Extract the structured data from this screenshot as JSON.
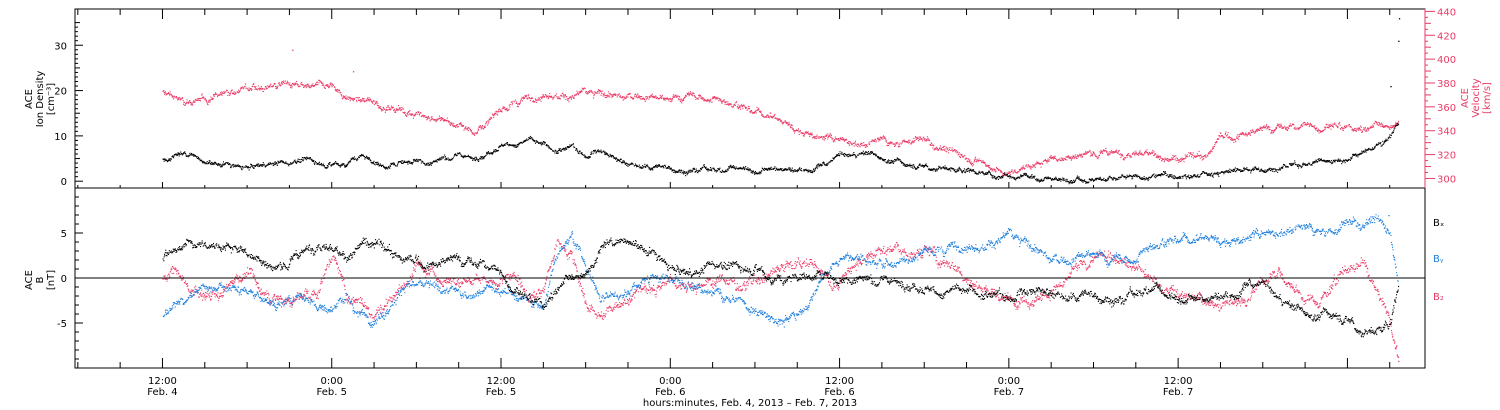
{
  "colors": {
    "bx": "#000000",
    "by": "#1f7fdc",
    "bz": "#ea3b66",
    "density": "#000000",
    "velocity": "#ea3b66",
    "axis": "#000000"
  },
  "chart_data": [
    {
      "type": "scatter",
      "panel": "top",
      "ylabel": [
        "ACE",
        "Ion Density",
        "[cm⁻³]"
      ],
      "ylim": [
        -1.5,
        38
      ],
      "yticks": [
        0,
        10,
        20,
        30
      ],
      "y2label": [
        "ACE",
        "Velocity",
        "[km/s]"
      ],
      "y2lim": [
        292,
        442
      ],
      "y2ticks": [
        300,
        320,
        340,
        360,
        380,
        400,
        420,
        440
      ],
      "series": [
        {
          "axis": "left",
          "color_key": "density",
          "x": [
            0,
            1,
            2,
            3,
            4,
            5,
            6,
            7,
            8,
            9,
            10,
            11,
            12,
            13,
            14,
            15,
            16,
            17,
            18,
            19,
            20,
            21,
            22,
            23,
            24,
            25,
            26,
            27,
            28,
            29,
            30,
            31,
            32,
            33,
            34,
            35,
            36,
            37,
            38,
            39,
            40,
            41,
            42,
            43,
            44,
            45,
            46,
            47,
            48,
            49,
            50,
            51,
            52,
            53,
            54,
            55,
            56,
            57,
            58,
            59,
            60,
            61,
            62,
            63,
            64,
            65,
            66,
            67,
            68,
            69,
            70,
            71,
            72,
            73,
            74,
            75,
            76,
            77,
            78,
            79,
            80,
            81,
            82,
            83,
            84,
            85,
            86,
            87,
            87.6
          ],
          "y": [
            5,
            5.5,
            6,
            4,
            3.5,
            3,
            3,
            3.5,
            4,
            4.5,
            5,
            4,
            3.5,
            4,
            6,
            4,
            3.5,
            4.5,
            5,
            4,
            5.5,
            6,
            5,
            6.5,
            8,
            8.5,
            9.5,
            8,
            7,
            7.5,
            6,
            7.5,
            5.5,
            4,
            3.5,
            3,
            3,
            2.5,
            2.5,
            3,
            2.5,
            3.5,
            2.5,
            3,
            2.5,
            2.5,
            2.5,
            3.5,
            5.5,
            6,
            6.5,
            5.5,
            4.5,
            3.5,
            3,
            3.5,
            2.5,
            2.5,
            2,
            1.5,
            1.5,
            1.5,
            1,
            0.5,
            0.5,
            0.5,
            0.5,
            1,
            1,
            1,
            1,
            1.5,
            1.5,
            1.5,
            2,
            2,
            2.5,
            2.5,
            3,
            3,
            3.5,
            4,
            4.5,
            5,
            5.5,
            6.5,
            8,
            10,
            13
          ]
        },
        {
          "axis": "right",
          "color_key": "velocity",
          "x": [
            0,
            1,
            2,
            3,
            4,
            5,
            6,
            7,
            8,
            9,
            10,
            11,
            12,
            13,
            14,
            15,
            16,
            17,
            18,
            19,
            20,
            21,
            22,
            23,
            24,
            25,
            26,
            27,
            28,
            29,
            30,
            31,
            32,
            33,
            34,
            35,
            36,
            37,
            38,
            39,
            40,
            41,
            42,
            43,
            44,
            45,
            46,
            47,
            48,
            49,
            50,
            51,
            52,
            53,
            54,
            55,
            56,
            57,
            58,
            59,
            60,
            61,
            62,
            63,
            64,
            65,
            66,
            67,
            68,
            69,
            70,
            71,
            72,
            73,
            74,
            75,
            76,
            77,
            78,
            79,
            80,
            81,
            82,
            83,
            84,
            85,
            86,
            87,
            87.6
          ],
          "y": [
            372,
            368,
            366,
            367,
            369,
            375,
            377,
            376,
            378,
            377,
            373,
            377,
            376,
            369,
            365,
            364,
            359,
            357,
            356,
            350,
            348,
            345,
            340,
            345,
            356,
            364,
            368,
            372,
            370,
            368,
            371,
            371,
            369,
            368,
            370,
            368,
            365,
            369,
            368,
            366,
            364,
            361,
            357,
            354,
            347,
            340,
            336,
            334,
            333,
            330,
            329,
            333,
            330,
            331,
            332,
            326,
            322,
            318,
            314,
            306,
            306,
            310,
            312,
            318,
            318,
            320,
            322,
            322,
            322,
            323,
            321,
            317,
            317,
            319,
            318,
            336,
            336,
            339,
            341,
            342,
            343,
            345,
            344,
            347,
            343,
            342,
            344,
            345,
            350
          ]
        }
      ],
      "spikes": {
        "density": [
          [
            87.05,
            21
          ],
          [
            87.6,
            31
          ],
          [
            87.65,
            36
          ]
        ],
        "velocity": [
          [
            9.2,
            408
          ],
          [
            13.5,
            390
          ]
        ]
      }
    },
    {
      "type": "scatter",
      "panel": "bottom",
      "ylabel": [
        "ACE",
        "B",
        "[nT]"
      ],
      "ylim": [
        -10,
        10
      ],
      "yticks": [
        -5,
        0,
        5
      ],
      "zero_line": true,
      "legend": [
        "Bₓ",
        "Bᵧ",
        "B₂"
      ],
      "legend_position": "right",
      "series": [
        {
          "name": "Bₓ",
          "color_key": "bx",
          "x": [
            0,
            1,
            2,
            3,
            4,
            5,
            6,
            7,
            8,
            9,
            10,
            11,
            12,
            13,
            14,
            15,
            16,
            17,
            18,
            19,
            20,
            21,
            22,
            23,
            24,
            25,
            26,
            27,
            28,
            29,
            30,
            31,
            32,
            33,
            34,
            35,
            36,
            37,
            38,
            39,
            40,
            41,
            42,
            43,
            44,
            45,
            46,
            47,
            48,
            49,
            50,
            51,
            52,
            53,
            54,
            55,
            56,
            57,
            58,
            59,
            60,
            61,
            62,
            63,
            64,
            65,
            66,
            67,
            68,
            69,
            70,
            71,
            72,
            73,
            74,
            75,
            76,
            77,
            78,
            79,
            80,
            81,
            82,
            83,
            84,
            85,
            86,
            87,
            87.6
          ],
          "y": [
            2,
            3,
            4,
            4,
            3.5,
            3.5,
            3,
            2,
            1,
            2,
            3,
            4,
            3.5,
            2,
            4,
            4,
            3,
            2,
            2,
            1.5,
            2,
            2,
            1.5,
            1.5,
            0.5,
            -1,
            -2,
            -3,
            -1,
            0,
            1,
            3,
            4,
            4,
            3,
            2,
            1,
            0.5,
            0.5,
            2,
            1.5,
            1,
            1,
            0,
            0,
            0,
            0.5,
            0.5,
            0,
            0,
            0,
            0,
            -0.5,
            -0.5,
            -1,
            -1.5,
            -1,
            -1.5,
            -1.5,
            -2,
            -2,
            -1,
            -1,
            -1.5,
            -2,
            -2,
            -2,
            -2,
            -2.5,
            -1.5,
            -1,
            -1.5,
            -2,
            -2,
            -2.5,
            -2,
            -2,
            -1,
            -1,
            -2,
            -3,
            -3.5,
            -4,
            -4,
            -5,
            -5.5,
            -6,
            -5,
            -1
          ]
        },
        {
          "name": "Bᵧ",
          "color_key": "by",
          "x": [
            0,
            1,
            2,
            3,
            4,
            5,
            6,
            7,
            8,
            9,
            10,
            11,
            12,
            13,
            14,
            15,
            16,
            17,
            18,
            19,
            20,
            21,
            22,
            23,
            24,
            25,
            26,
            27,
            28,
            29,
            30,
            31,
            32,
            33,
            34,
            35,
            36,
            37,
            38,
            39,
            40,
            41,
            42,
            43,
            44,
            45,
            46,
            47,
            48,
            49,
            50,
            51,
            52,
            53,
            54,
            55,
            56,
            57,
            58,
            59,
            60,
            61,
            62,
            63,
            64,
            65,
            66,
            67,
            68,
            69,
            70,
            71,
            72,
            73,
            74,
            75,
            76,
            77,
            78,
            79,
            80,
            81,
            82,
            83,
            84,
            85,
            86,
            87,
            87.6
          ],
          "y": [
            -4,
            -3,
            -2,
            -1,
            -0.5,
            -1,
            -1.5,
            -2,
            -3,
            -2.5,
            -2,
            -3,
            -3.5,
            -2,
            -4,
            -4.5,
            -3,
            -1,
            -1,
            -1,
            -1.5,
            -1.5,
            -2,
            -1,
            -2,
            -2,
            -2.5,
            -3,
            3,
            5,
            1,
            -2,
            -2,
            -1.5,
            -0.5,
            0,
            0,
            -0.5,
            -1,
            -1.5,
            -2,
            -2.5,
            -4,
            -4.5,
            -5,
            -4,
            -2,
            0.5,
            2,
            2.5,
            2,
            1.5,
            2,
            2,
            3,
            3,
            3.5,
            4,
            3.5,
            4,
            4.5,
            4,
            3,
            2,
            2,
            2.5,
            2.5,
            2,
            2,
            2,
            3.5,
            4,
            4.5,
            4.5,
            4.5,
            4,
            4,
            4.5,
            5,
            5,
            5.5,
            5.5,
            5.5,
            5,
            6,
            6,
            6.5,
            5,
            0
          ]
        },
        {
          "name": "B₂",
          "color_key": "bz",
          "x": [
            0,
            1,
            2,
            3,
            4,
            5,
            6,
            7,
            8,
            9,
            10,
            11,
            12,
            13,
            14,
            15,
            16,
            17,
            18,
            19,
            20,
            21,
            22,
            23,
            24,
            25,
            26,
            27,
            28,
            29,
            30,
            31,
            32,
            33,
            34,
            35,
            36,
            37,
            38,
            39,
            40,
            41,
            42,
            43,
            44,
            45,
            46,
            47,
            48,
            49,
            50,
            51,
            52,
            53,
            54,
            55,
            56,
            57,
            58,
            59,
            60,
            61,
            62,
            63,
            64,
            65,
            66,
            67,
            68,
            69,
            70,
            71,
            72,
            73,
            74,
            75,
            76,
            77,
            78,
            79,
            80,
            81,
            82,
            83,
            84,
            85,
            86,
            87,
            87.6
          ],
          "y": [
            0,
            1,
            -2,
            -2,
            -1.5,
            0,
            1,
            -1.5,
            -2,
            -2,
            -2,
            -1.5,
            3,
            -2,
            -2.5,
            -3.5,
            -2,
            -1,
            1.5,
            1,
            0,
            0,
            -0.5,
            -1,
            0,
            0,
            -2,
            -1,
            4,
            3,
            -3,
            -4,
            -3,
            -2,
            -1.5,
            -1,
            -0.5,
            -0.5,
            -1,
            0,
            0,
            -1,
            0,
            0.5,
            1,
            2,
            2,
            0,
            -0.5,
            2,
            3,
            3.5,
            3,
            3,
            3,
            2,
            1.5,
            0,
            -1,
            -2,
            -2.5,
            -2,
            -2,
            -1.5,
            -1,
            1,
            2,
            2.5,
            2,
            1,
            0,
            -1,
            -2,
            -2,
            -2.5,
            -3,
            -3,
            -2,
            0,
            1,
            -1,
            -2,
            -2.5,
            0,
            1,
            2,
            -1,
            -5,
            -9
          ]
        }
      ],
      "spikes": {
        "bx": [],
        "by": [
          [
            86.9,
            7
          ]
        ],
        "bz": [
          [
            87.5,
            -8.5
          ],
          [
            87.6,
            -9.2
          ]
        ]
      }
    }
  ],
  "x_axis": {
    "xlim": [
      -6.2,
      89.5
    ],
    "ticks": [
      {
        "x": 0,
        "time": "12:00",
        "date": "Feb. 4"
      },
      {
        "x": 12,
        "time": "0:00",
        "date": "Feb. 5"
      },
      {
        "x": 24,
        "time": "12:00",
        "date": "Feb. 5"
      },
      {
        "x": 36,
        "time": "0:00",
        "date": "Feb. 6"
      },
      {
        "x": 48,
        "time": "12:00",
        "date": "Feb. 6"
      },
      {
        "x": 60,
        "time": "0:00",
        "date": "Feb. 7"
      },
      {
        "x": 72,
        "time": "12:00",
        "date": "Feb. 7"
      }
    ],
    "label": "hours:minutes, Feb.  4, 2013 – Feb.  7, 2013"
  }
}
